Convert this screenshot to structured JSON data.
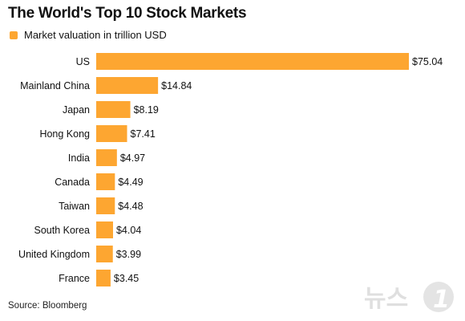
{
  "title": "The World's Top 10 Stock Markets",
  "source": "Source: Bloomberg",
  "watermark_text": "뉴스1",
  "colors": {
    "bar": "#FDA631",
    "text": "#111111"
  },
  "chart_data": {
    "type": "bar",
    "orientation": "horizontal",
    "title": "The World's Top 10 Stock Markets",
    "legend": {
      "label": "Market valuation in trillion USD",
      "placement": "top-left"
    },
    "categories": [
      "US",
      "Mainland China",
      "Japan",
      "Hong Kong",
      "India",
      "Canada",
      "Taiwan",
      "South Korea",
      "United Kingdom",
      "France"
    ],
    "values": [
      75.04,
      14.84,
      8.19,
      7.41,
      4.97,
      4.49,
      4.48,
      4.04,
      3.99,
      3.45
    ],
    "value_labels": [
      "$75.04",
      "$14.84",
      "$8.19",
      "$7.41",
      "$4.97",
      "$4.49",
      "$4.48",
      "$4.04",
      "$3.99",
      "$3.45"
    ],
    "xlim": [
      0,
      75.04
    ],
    "grid": false
  }
}
